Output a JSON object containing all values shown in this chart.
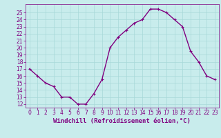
{
  "x": [
    0,
    1,
    2,
    3,
    4,
    5,
    6,
    7,
    8,
    9,
    10,
    11,
    12,
    13,
    14,
    15,
    16,
    17,
    18,
    19,
    20,
    21,
    22,
    23
  ],
  "y": [
    17,
    16,
    15,
    14.5,
    13,
    13,
    12,
    12,
    13.5,
    15.5,
    20,
    21.5,
    22.5,
    23.5,
    24,
    25.5,
    25.5,
    25,
    24,
    23,
    19.5,
    18,
    16,
    15.5
  ],
  "line_color": "#800080",
  "marker_color": "#800080",
  "bg_color": "#c8ecec",
  "grid_color": "#a8d8d8",
  "xlabel": "Windchill (Refroidissement éolien,°C)",
  "ylim": [
    11.5,
    26.2
  ],
  "xlim": [
    -0.5,
    23.5
  ],
  "yticks": [
    12,
    13,
    14,
    15,
    16,
    17,
    18,
    19,
    20,
    21,
    22,
    23,
    24,
    25
  ],
  "xticks": [
    0,
    1,
    2,
    3,
    4,
    5,
    6,
    7,
    8,
    9,
    10,
    11,
    12,
    13,
    14,
    15,
    16,
    17,
    18,
    19,
    20,
    21,
    22,
    23
  ],
  "tick_color": "#800080",
  "label_color": "#800080",
  "label_fontsize": 6.5,
  "tick_fontsize": 5.5,
  "line_width": 1.0,
  "marker_size": 2.5,
  "spine_color": "#800080"
}
